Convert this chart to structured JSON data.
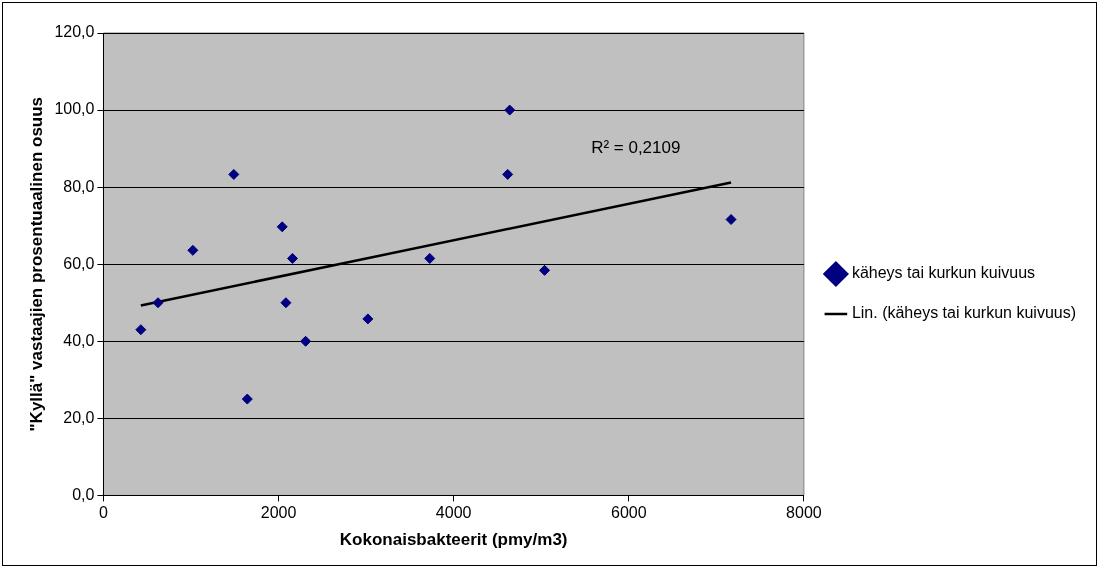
{
  "chart_data": {
    "type": "scatter",
    "xlabel": "Kokonaisbakteerit (pmy/m3)",
    "ylabel": "\"Kyllä\" vastaajien prosentuaalinen osuus",
    "series": [
      {
        "name": "käheys tai kurkun kuivuus",
        "color": "#000080",
        "marker": "diamond",
        "x": [
          427,
          623,
          1021,
          1489,
          1643,
          2042,
          2159,
          2084,
          2309,
          3020,
          3727,
          4640,
          4617,
          5038,
          7168
        ],
        "values": [
          43,
          50,
          63.6,
          83.3,
          25,
          69.7,
          61.5,
          50,
          40,
          45.8,
          61.5,
          100,
          83.3,
          58.4,
          71.6
        ]
      },
      {
        "name": "Lin. (käheys tai kurkun kuivuus)",
        "type": "line",
        "color": "#000000",
        "marker": "none",
        "line_style": "solid",
        "x": [
          427,
          7168
        ],
        "values": [
          49.3,
          81.2
        ]
      }
    ],
    "annotations": [
      "R² = 0,2109"
    ],
    "xlim": [
      0,
      8000
    ],
    "xticks": [
      0,
      2000,
      4000,
      6000,
      8000
    ],
    "ylim": [
      0,
      120
    ],
    "yticks": [
      {
        "value": 0,
        "label": "0,0"
      },
      {
        "value": 20,
        "label": "20,0"
      },
      {
        "value": 40,
        "label": "40,0"
      },
      {
        "value": 60,
        "label": "60,0"
      },
      {
        "value": 80,
        "label": "80,0"
      },
      {
        "value": 100,
        "label": "100,0"
      },
      {
        "value": 120,
        "label": "120,0"
      }
    ],
    "grid": "y",
    "legend": "right"
  }
}
